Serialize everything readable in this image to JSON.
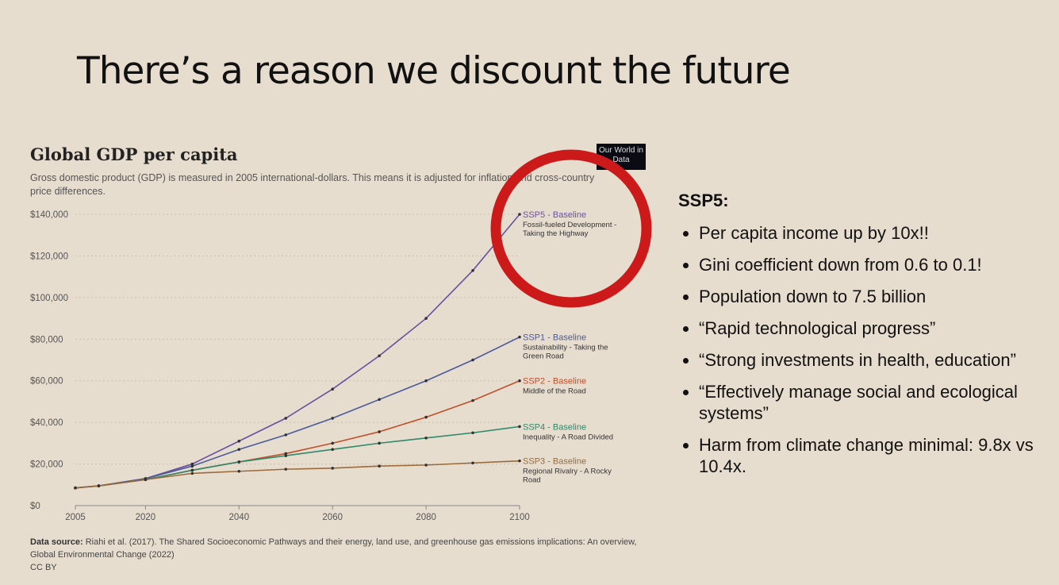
{
  "slide": {
    "title": "There’s a reason we discount the future"
  },
  "chart_data": {
    "type": "line",
    "title": "Global GDP per capita",
    "subtitle": "Gross domestic product (GDP) is measured in 2005 international-dollars. This means it is adjusted for inflation and cross-country price differences.",
    "logo": "Our World in Data",
    "x": [
      2005,
      2010,
      2020,
      2030,
      2040,
      2050,
      2060,
      2070,
      2080,
      2090,
      2100
    ],
    "xticks": [
      "2005",
      "2020",
      "2040",
      "2060",
      "2080",
      "2100"
    ],
    "xtick_values": [
      2005,
      2020,
      2040,
      2060,
      2080,
      2100
    ],
    "yticks": [
      "$0",
      "$20,000",
      "$40,000",
      "$60,000",
      "$80,000",
      "$100,000",
      "$120,000",
      "$140,000"
    ],
    "ylim": [
      0,
      140000
    ],
    "grid": true,
    "series": [
      {
        "name": "SSP5 - Baseline",
        "desc": "Fossil-fueled Development - Taking the Highway",
        "color": "#6b4fa0",
        "values": [
          8500,
          9500,
          13000,
          20000,
          31000,
          42000,
          56000,
          72000,
          90000,
          113000,
          140000
        ]
      },
      {
        "name": "SSP1 - Baseline",
        "desc": "Sustainability - Taking the Green Road",
        "color": "#4a5a9a",
        "values": [
          8500,
          9500,
          13000,
          19000,
          27000,
          34000,
          42000,
          51000,
          60000,
          70000,
          81000
        ]
      },
      {
        "name": "SSP2 - Baseline",
        "desc": "Middle of the Road",
        "color": "#c0502a",
        "values": [
          8500,
          9500,
          12500,
          17000,
          21000,
          25000,
          30000,
          35500,
          42500,
          50500,
          60000
        ]
      },
      {
        "name": "SSP4 - Baseline",
        "desc": "Inequality - A Road Divided",
        "color": "#2e8a6a",
        "values": [
          8500,
          9500,
          12500,
          17000,
          21000,
          24000,
          27000,
          30000,
          32500,
          35000,
          38000
        ]
      },
      {
        "name": "SSP3 - Baseline",
        "desc": "Regional Rivalry - A Rocky Road",
        "color": "#9a6a3a",
        "values": [
          8500,
          9500,
          12500,
          15500,
          16500,
          17500,
          18000,
          19000,
          19500,
          20500,
          21500
        ]
      }
    ],
    "source_label": "Data source:",
    "source": "Riahi et al. (2017). The Shared Socioeconomic Pathways and their energy, land use, and greenhouse gas emissions implications: An overview, Global Environmental Change (2022)",
    "license": "CC BY"
  },
  "panel": {
    "heading": "SSP5:",
    "bullets": [
      "Per capita income up by 10x!!",
      "Gini coefficient down from 0.6 to 0.1!",
      "Population down to 7.5 billion",
      "“Rapid technological progress”",
      "“Strong investments in health, education”",
      "“Effectively manage social and ecological systems”",
      "Harm from climate change minimal: 9.8x vs 10.4x."
    ]
  }
}
